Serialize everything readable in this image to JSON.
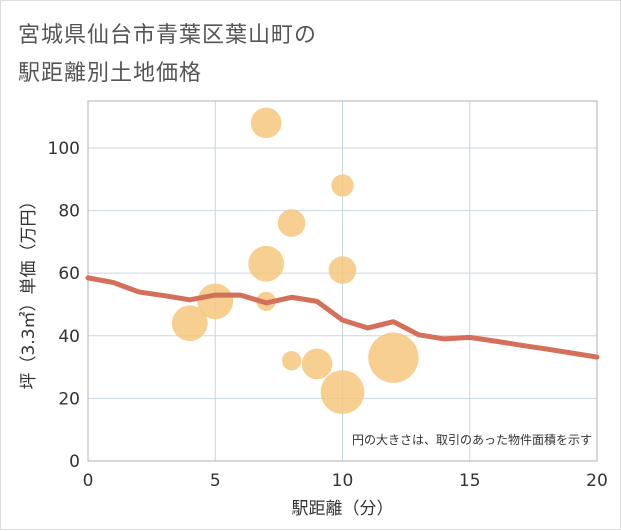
{
  "title_line1": "宮城県仙台市青葉区葉山町の",
  "title_line2": "駅距離別土地価格",
  "chart_data": {
    "type": "scatter",
    "title": "宮城県仙台市青葉区葉山町の駅距離別土地価格",
    "xlabel": "駅距離（分）",
    "ylabel": "坪（3.3㎡）単価（万円）",
    "xlim": [
      0,
      20
    ],
    "ylim": [
      0,
      115
    ],
    "xticks": [
      0,
      5,
      10,
      15,
      20
    ],
    "yticks": [
      0,
      20,
      40,
      60,
      80,
      100
    ],
    "grid": true,
    "note": "円の大きさは、取引のあった物件面積を示す",
    "bubble_color": "#f5c77e",
    "line_color": "#d4705a",
    "points": [
      {
        "x": 4,
        "y": 44,
        "size": 3
      },
      {
        "x": 5,
        "y": 51,
        "size": 3
      },
      {
        "x": 7,
        "y": 108,
        "size": 2
      },
      {
        "x": 7,
        "y": 63,
        "size": 3
      },
      {
        "x": 7,
        "y": 51,
        "size": 0.5
      },
      {
        "x": 8,
        "y": 76,
        "size": 1.5
      },
      {
        "x": 8,
        "y": 32,
        "size": 0.5
      },
      {
        "x": 9,
        "y": 31,
        "size": 2
      },
      {
        "x": 10,
        "y": 88,
        "size": 0.8
      },
      {
        "x": 10,
        "y": 61,
        "size": 1.5
      },
      {
        "x": 10,
        "y": 22,
        "size": 5
      },
      {
        "x": 12,
        "y": 33,
        "size": 7
      }
    ],
    "trend": {
      "x": [
        0,
        1,
        2,
        3,
        4,
        5,
        6,
        7,
        8,
        9,
        10,
        11,
        12,
        13,
        14,
        15,
        16,
        17,
        18,
        19,
        20
      ],
      "y": [
        58.5,
        57,
        54,
        52.8,
        51.5,
        53,
        53,
        50.5,
        52.3,
        51,
        45,
        42.5,
        44.5,
        40.3,
        39,
        39.5,
        38.3,
        37,
        35.8,
        34.5,
        33.2
      ]
    }
  }
}
